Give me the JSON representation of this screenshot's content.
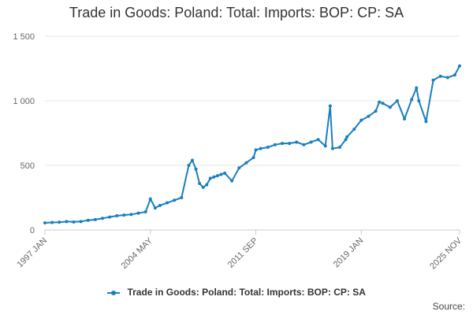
{
  "chart_data": {
    "type": "line",
    "title": "Trade in Goods: Poland: Total: Imports: BOP: CP: SA",
    "xlabel": "",
    "ylabel": "",
    "x_tick_labels": [
      "1997 JAN",
      "2004 MAY",
      "2011 SEP",
      "2019 JAN",
      "2025 NOV"
    ],
    "y_tick_labels": [
      "0",
      "500",
      "1 000",
      "1 500"
    ],
    "y_ticks": [
      0,
      500,
      1000,
      1500
    ],
    "ylim": [
      0,
      1500
    ],
    "xlim": [
      "1997-01",
      "2025-11"
    ],
    "grid": "horizontal",
    "legend_position": "bottom",
    "series": [
      {
        "name": "Trade in Goods: Poland: Total: Imports: BOP: CP: SA",
        "color": "#1a7fbf",
        "x": [
          "1997-01",
          "1997-07",
          "1998-01",
          "1998-07",
          "1999-01",
          "1999-07",
          "2000-01",
          "2000-07",
          "2001-01",
          "2001-07",
          "2002-01",
          "2002-07",
          "2003-01",
          "2003-07",
          "2004-01",
          "2004-05",
          "2004-09",
          "2005-01",
          "2005-07",
          "2006-01",
          "2006-07",
          "2007-01",
          "2007-04",
          "2007-07",
          "2007-10",
          "2008-01",
          "2008-04",
          "2008-07",
          "2008-10",
          "2009-01",
          "2009-04",
          "2009-07",
          "2010-01",
          "2010-07",
          "2011-01",
          "2011-07",
          "2011-09",
          "2012-01",
          "2012-07",
          "2013-01",
          "2013-07",
          "2014-01",
          "2014-07",
          "2015-01",
          "2015-07",
          "2016-01",
          "2016-07",
          "2016-11",
          "2017-01",
          "2017-07",
          "2017-12",
          "2018-01",
          "2018-07",
          "2019-01",
          "2019-07",
          "2020-01",
          "2020-04",
          "2020-07",
          "2021-01",
          "2021-07",
          "2022-01",
          "2022-07",
          "2022-11",
          "2023-01",
          "2023-07",
          "2024-01",
          "2024-07",
          "2025-01",
          "2025-07",
          "2025-11"
        ],
        "values": [
          55,
          58,
          60,
          65,
          62,
          65,
          75,
          80,
          90,
          100,
          110,
          115,
          120,
          130,
          140,
          240,
          170,
          190,
          210,
          230,
          250,
          500,
          540,
          470,
          360,
          330,
          350,
          400,
          410,
          420,
          430,
          440,
          380,
          480,
          520,
          560,
          620,
          630,
          640,
          660,
          670,
          670,
          680,
          660,
          680,
          700,
          650,
          960,
          630,
          640,
          700,
          720,
          780,
          850,
          880,
          920,
          990,
          980,
          950,
          1000,
          860,
          1010,
          1100,
          1000,
          840,
          1160,
          1190,
          1180,
          1200,
          1270
        ]
      }
    ]
  },
  "legend": {
    "label": "Trade in Goods: Poland: Total: Imports: BOP: CP: SA"
  },
  "source": {
    "label": "Source:"
  }
}
